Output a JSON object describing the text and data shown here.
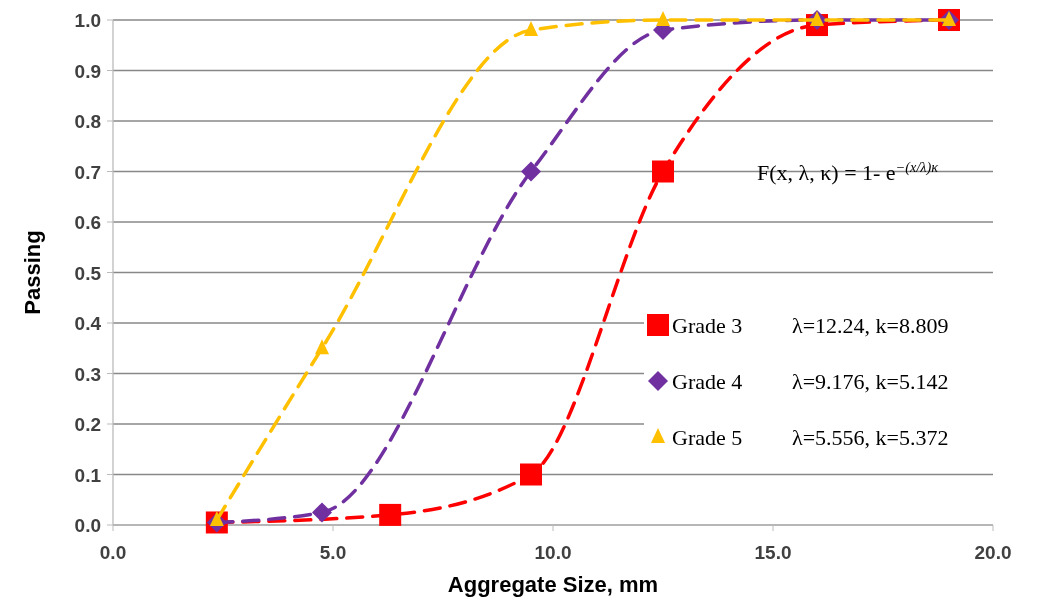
{
  "chart_data": {
    "type": "line",
    "xlabel": "Aggregate Size, mm",
    "ylabel": "Passing",
    "xlim": [
      0,
      20
    ],
    "xticks": [
      {
        "value": 0,
        "label": "0.0"
      },
      {
        "value": 5,
        "label": "5.0"
      },
      {
        "value": 10,
        "label": "10.0"
      },
      {
        "value": 15,
        "label": "15.0"
      },
      {
        "value": 20,
        "label": "20.0"
      }
    ],
    "ylim": [
      0,
      1
    ],
    "yticks": [
      {
        "value": 0,
        "label": "0.0"
      },
      {
        "value": 0.1,
        "label": "0.1"
      },
      {
        "value": 0.2,
        "label": "0.2"
      },
      {
        "value": 0.3,
        "label": "0.3"
      },
      {
        "value": 0.4,
        "label": "0.4"
      },
      {
        "value": 0.5,
        "label": "0.5"
      },
      {
        "value": 0.6,
        "label": "0.6"
      },
      {
        "value": 0.7,
        "label": "0.7"
      },
      {
        "value": 0.8,
        "label": "0.8"
      },
      {
        "value": 0.9,
        "label": "0.9"
      },
      {
        "value": 1,
        "label": "1.0"
      }
    ],
    "grid": "y",
    "legend": "right",
    "series": [
      {
        "name": "Grade 3",
        "color": "#ff0000",
        "marker": "square",
        "line_style": "dashed",
        "x": [
          2.36,
          6.3,
          9.5,
          12.5,
          16,
          19
        ],
        "values": [
          0.005,
          0.02,
          0.1,
          0.7,
          0.99,
          1.0
        ]
      },
      {
        "name": "Grade 4",
        "color": "#7030a0",
        "marker": "diamond",
        "line_style": "dashed",
        "x": [
          2.36,
          4.75,
          9.5,
          12.5,
          16,
          19
        ],
        "values": [
          0.005,
          0.025,
          0.7,
          0.98,
          1.0,
          1.0
        ]
      },
      {
        "name": "Grade 5",
        "color": "#ffc000",
        "marker": "triangle",
        "line_style": "dashed",
        "x": [
          2.36,
          4.75,
          9.5,
          12.5,
          16,
          19
        ],
        "values": [
          0.01,
          0.35,
          0.98,
          1.0,
          1.0,
          1.0
        ]
      }
    ],
    "annotations": [
      "λ=12.24, k=8.809",
      "λ=9.176, k=5.142",
      "λ=5.556, k=5.372",
      "F(x, λ, κ) = 1- e$^{−(x/λ)}$$^{κ}$"
    ]
  }
}
